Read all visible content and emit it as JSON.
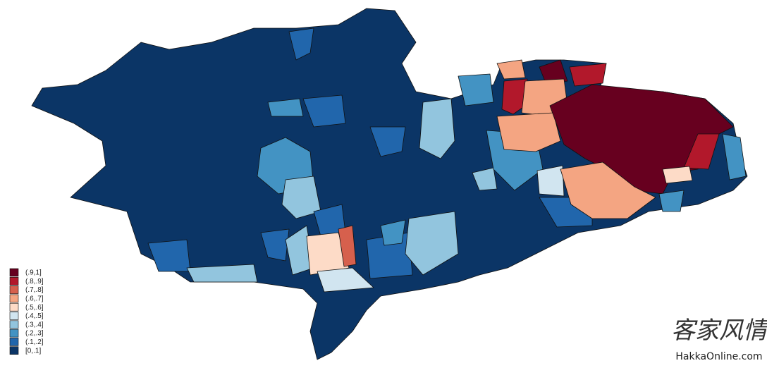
{
  "legend": {
    "items": [
      {
        "label": "(.9,1]",
        "color": "#67001f"
      },
      {
        "label": "(.8,.9]",
        "color": "#b2182b"
      },
      {
        "label": "(.7,.8]",
        "color": "#d6604d"
      },
      {
        "label": "(.6,.7]",
        "color": "#f4a582"
      },
      {
        "label": "(.5,.6]",
        "color": "#fddbc7"
      },
      {
        "label": "(.4,.5]",
        "color": "#d1e5f0"
      },
      {
        "label": "(.3,.4]",
        "color": "#92c5de"
      },
      {
        "label": "(.2,.3]",
        "color": "#4393c3"
      },
      {
        "label": "(.1,.2]",
        "color": "#2166ac"
      },
      {
        "label": "[0,.1]",
        "color": "#0b3566"
      }
    ]
  },
  "watermark": {
    "title": "客家风情",
    "site": "HakkaOnline.com"
  }
}
